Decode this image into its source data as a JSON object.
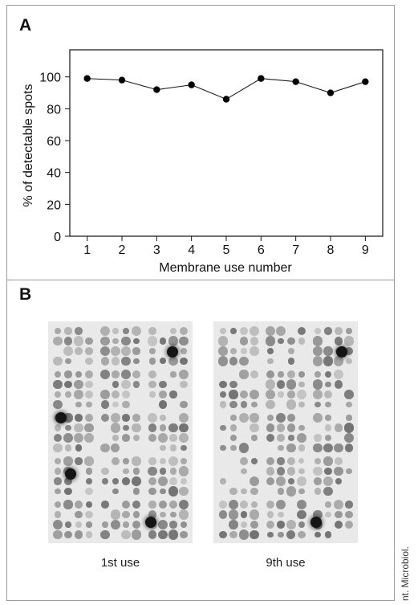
{
  "panel_a": {
    "label": "A"
  },
  "panel_b": {
    "label": "B",
    "blots": [
      {
        "caption": "1st use"
      },
      {
        "caption": "9th use"
      }
    ]
  },
  "side_credit": "nt. Microbiol.",
  "chart_data": {
    "type": "line",
    "xlabel": "Membrane use number",
    "ylabel": "% of detectable spots",
    "x": [
      1,
      2,
      3,
      4,
      5,
      6,
      7,
      8,
      9
    ],
    "y": [
      99,
      98,
      92,
      95,
      86,
      99,
      97,
      90,
      97
    ],
    "xticks": [
      "1",
      "2",
      "3",
      "4",
      "5",
      "6",
      "7",
      "8",
      "9"
    ],
    "yticks": [
      0,
      20,
      40,
      60,
      80,
      100
    ],
    "xlim": [
      0.5,
      9.5
    ],
    "ylim": [
      0,
      117
    ],
    "grid": false,
    "marker": "filled-circle",
    "line_color": "#111111"
  }
}
